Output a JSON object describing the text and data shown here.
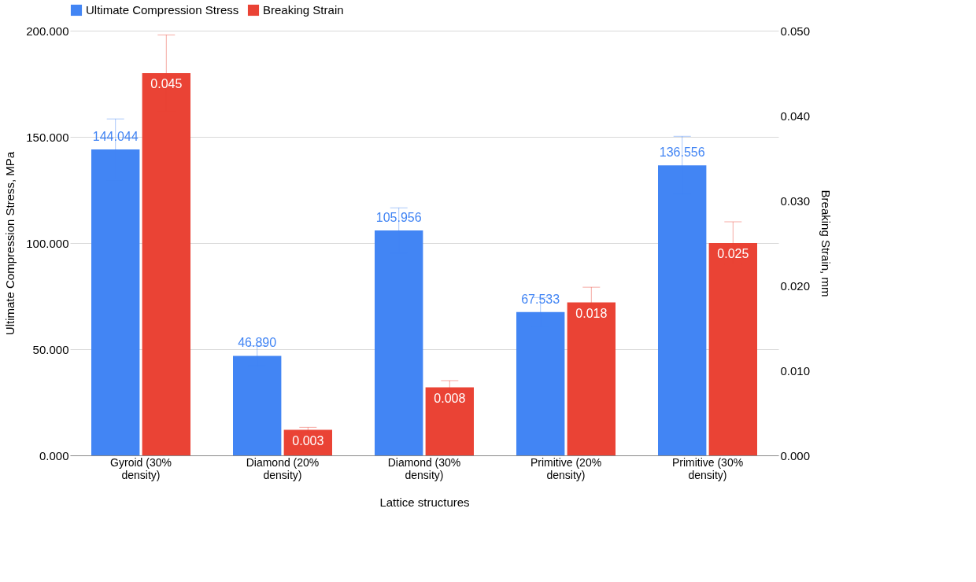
{
  "chart_data": {
    "type": "bar",
    "xlabel": "Lattice structures",
    "ylabel": "Ultimate Compression Stress, MPa",
    "y2label": "Breaking Strain, mm",
    "categories": [
      "Gyroid (30% density)",
      "Diamond (20% density)",
      "Diamond (30% density)",
      "Primitive (20% density)",
      "Primitive (30% density)"
    ],
    "series": [
      {
        "name": "Ultimate Compression Stress",
        "color": "#4285f4",
        "values": [
          144.044,
          46.89,
          105.956,
          67.533,
          136.556
        ],
        "value_labels": [
          "144.044",
          "46.890",
          "105.956",
          "67.533",
          "136.556"
        ],
        "errors": [
          14.4,
          4.7,
          10.6,
          6.8,
          13.7
        ]
      },
      {
        "name": "Breaking Strain",
        "color": "#ea4335",
        "axis": "y2",
        "values": [
          0.045,
          0.003,
          0.008,
          0.018,
          0.025
        ],
        "value_labels": [
          "0.045",
          "0.003",
          "0.008",
          "0.018",
          "0.025"
        ],
        "errors": [
          0.0045,
          0.0003,
          0.0008,
          0.0018,
          0.0025
        ]
      }
    ],
    "ylim": [
      0,
      200
    ],
    "yticks": [
      {
        "value": 0,
        "label": "0.000"
      },
      {
        "value": 50,
        "label": "50.000"
      },
      {
        "value": 100,
        "label": "100.000"
      },
      {
        "value": 150,
        "label": "150.000"
      },
      {
        "value": 200,
        "label": "200.000"
      }
    ],
    "y2lim": [
      0,
      0.05
    ],
    "y2ticks": [
      {
        "value": 0,
        "label": "0.000"
      },
      {
        "value": 0.01,
        "label": "0.010"
      },
      {
        "value": 0.02,
        "label": "0.020"
      },
      {
        "value": 0.03,
        "label": "0.030"
      },
      {
        "value": 0.04,
        "label": "0.040"
      },
      {
        "value": 0.05,
        "label": "0.050"
      }
    ],
    "grid": "y",
    "legend": "top"
  }
}
